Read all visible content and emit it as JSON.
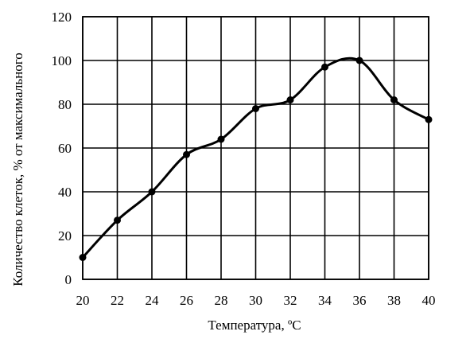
{
  "chart_data": {
    "type": "line",
    "title": "",
    "xlabel": "Температура, ºС",
    "ylabel": "Количество клеток, % от максимального",
    "x": [
      20,
      22,
      24,
      26,
      28,
      30,
      32,
      34,
      36,
      38,
      40
    ],
    "xlim": [
      20,
      40
    ],
    "ylim": [
      0,
      120
    ],
    "xticks": [
      "20",
      "22",
      "24",
      "26",
      "28",
      "30",
      "32",
      "34",
      "36",
      "38",
      "40"
    ],
    "yticks": [
      "0",
      "20",
      "40",
      "60",
      "80",
      "100",
      "120"
    ],
    "grid": true,
    "series": [
      {
        "values": [
          10,
          27,
          40,
          57,
          64,
          78,
          82,
          97,
          100,
          82,
          73
        ]
      }
    ],
    "colors": {
      "line": "#000000",
      "grid": "#000000"
    }
  }
}
